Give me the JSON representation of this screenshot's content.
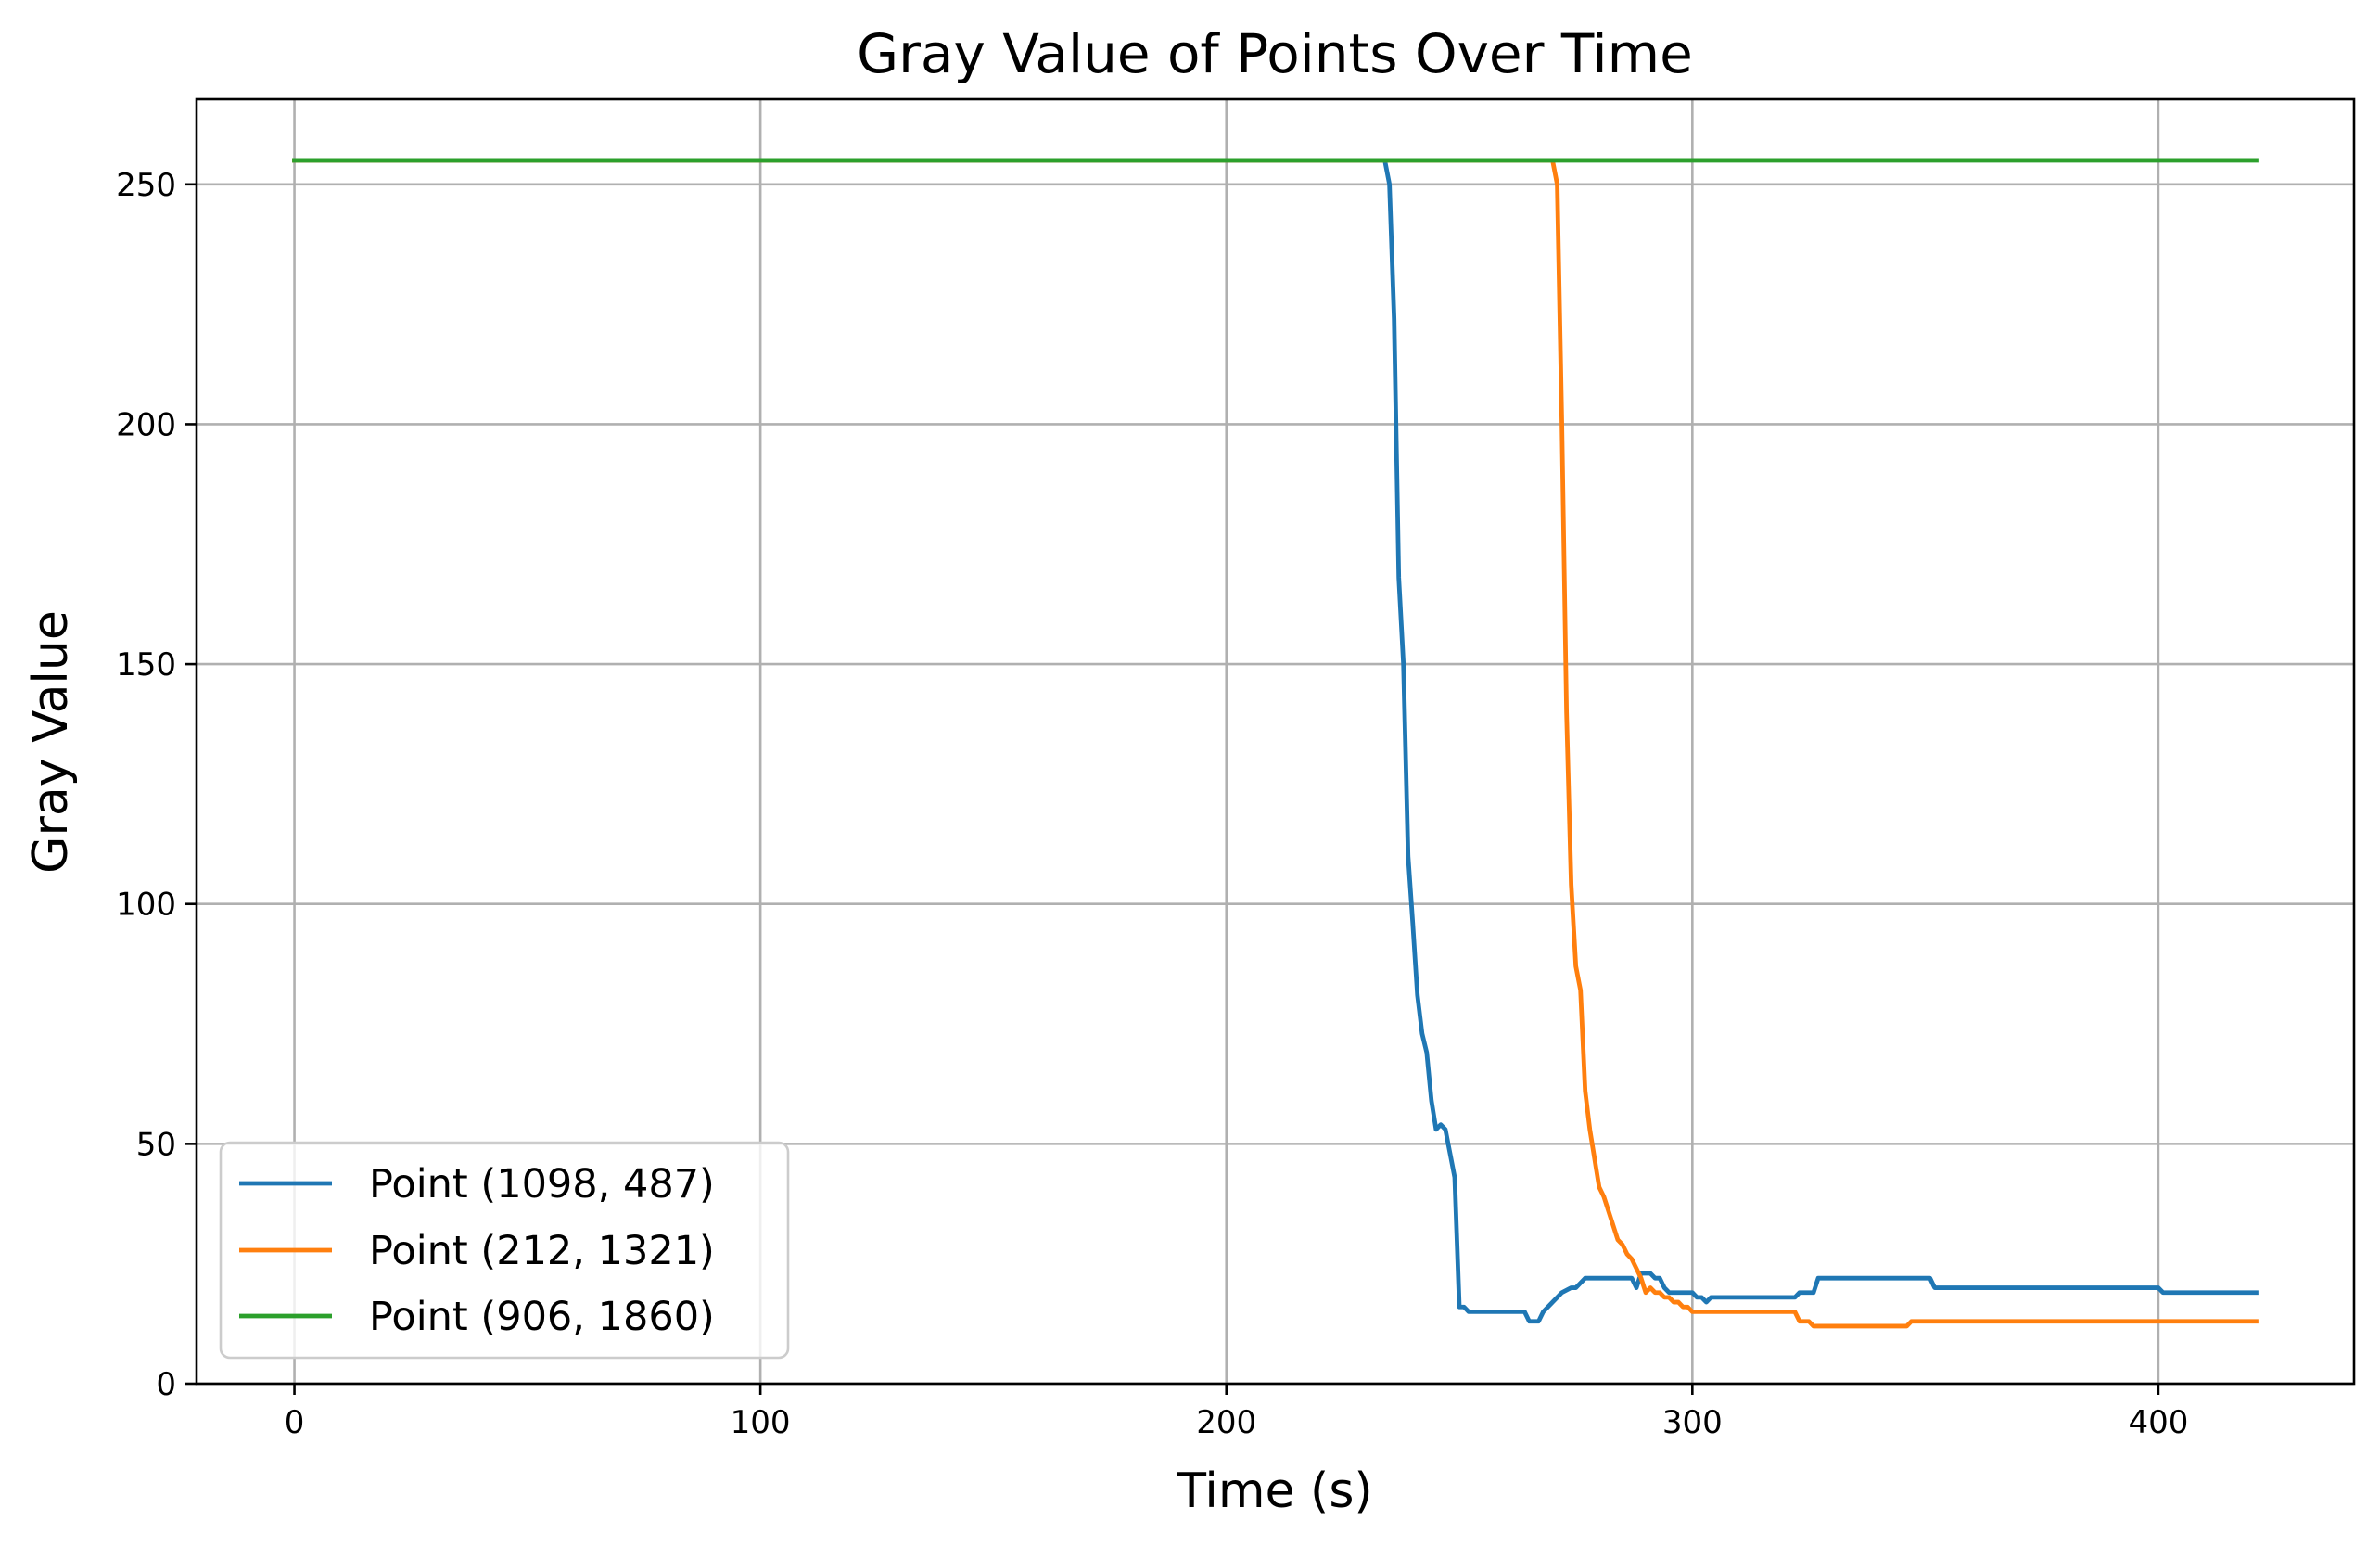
{
  "chart_data": {
    "type": "line",
    "title": "Gray Value of Points Over Time",
    "xlabel": "Time (s)",
    "ylabel": "Gray Value",
    "xlim": [
      -21,
      442
    ],
    "ylim": [
      0,
      267.75
    ],
    "xticks": [
      0,
      100,
      200,
      300,
      400
    ],
    "yticks": [
      0,
      50,
      100,
      150,
      200,
      250
    ],
    "grid": true,
    "legend_position": "lower-left",
    "series": [
      {
        "name": "Point (1098, 487)",
        "color": "#1f77b4",
        "points": [
          [
            0,
            255
          ],
          [
            234,
            255
          ],
          [
            235,
            250
          ],
          [
            236,
            222
          ],
          [
            237,
            168
          ],
          [
            238,
            150
          ],
          [
            239,
            110
          ],
          [
            240,
            96
          ],
          [
            241,
            81
          ],
          [
            242,
            73
          ],
          [
            243,
            69
          ],
          [
            244,
            59
          ],
          [
            245,
            53
          ],
          [
            246,
            54
          ],
          [
            247,
            53
          ],
          [
            248,
            48
          ],
          [
            249,
            43
          ],
          [
            250,
            16
          ],
          [
            251,
            16
          ],
          [
            252,
            15
          ],
          [
            264,
            15
          ],
          [
            265,
            13
          ],
          [
            267,
            13
          ],
          [
            268,
            15
          ],
          [
            270,
            17
          ],
          [
            272,
            19
          ],
          [
            274,
            20
          ],
          [
            275,
            20
          ],
          [
            276,
            21
          ],
          [
            277,
            22
          ],
          [
            287,
            22
          ],
          [
            288,
            20
          ],
          [
            289,
            23
          ],
          [
            291,
            23
          ],
          [
            292,
            22
          ],
          [
            293,
            22
          ],
          [
            294,
            20
          ],
          [
            295,
            19
          ],
          [
            300,
            19
          ],
          [
            301,
            18
          ],
          [
            302,
            18
          ],
          [
            303,
            17
          ],
          [
            304,
            18
          ],
          [
            322,
            18
          ],
          [
            323,
            19
          ],
          [
            326,
            19
          ],
          [
            327,
            22
          ],
          [
            351,
            22
          ],
          [
            352,
            20
          ],
          [
            400,
            20
          ],
          [
            401,
            19
          ],
          [
            421,
            19
          ]
        ]
      },
      {
        "name": "Point (212, 1321)",
        "color": "#ff7f0e",
        "points": [
          [
            0,
            255
          ],
          [
            270,
            255
          ],
          [
            271,
            250
          ],
          [
            272,
            200
          ],
          [
            273,
            140
          ],
          [
            274,
            104
          ],
          [
            275,
            87
          ],
          [
            276,
            82
          ],
          [
            277,
            61
          ],
          [
            278,
            53
          ],
          [
            279,
            47
          ],
          [
            280,
            41
          ],
          [
            281,
            39
          ],
          [
            282,
            36
          ],
          [
            283,
            33
          ],
          [
            284,
            30
          ],
          [
            285,
            29
          ],
          [
            286,
            27
          ],
          [
            287,
            26
          ],
          [
            288,
            24
          ],
          [
            289,
            22
          ],
          [
            290,
            19
          ],
          [
            291,
            20
          ],
          [
            292,
            19
          ],
          [
            293,
            19
          ],
          [
            294,
            18
          ],
          [
            295,
            18
          ],
          [
            296,
            17
          ],
          [
            297,
            17
          ],
          [
            298,
            16
          ],
          [
            299,
            16
          ],
          [
            300,
            15
          ],
          [
            322,
            15
          ],
          [
            323,
            13
          ],
          [
            325,
            13
          ],
          [
            326,
            12
          ],
          [
            346,
            12
          ],
          [
            347,
            13
          ],
          [
            421,
            13
          ]
        ]
      },
      {
        "name": "Point (906, 1860)",
        "color": "#2ca02c",
        "points": [
          [
            0,
            255
          ],
          [
            421,
            255
          ]
        ]
      }
    ]
  }
}
